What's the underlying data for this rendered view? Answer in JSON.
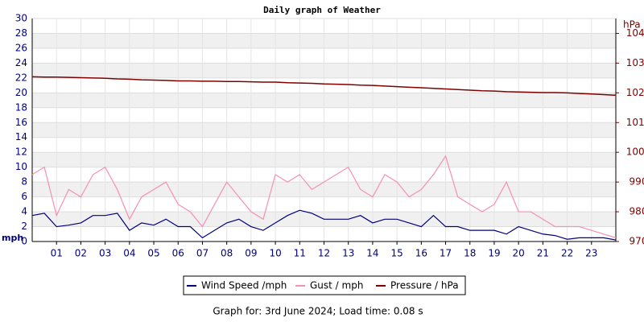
{
  "chart_data": {
    "type": "line",
    "title": "Daily graph of Weather",
    "y_label": "mph",
    "y2_label": "hPa",
    "footer": "Graph for: 3rd June 2024; Load time: 0.08 s",
    "grid": true,
    "xlim": [
      0,
      24
    ],
    "xticks": [
      {
        "value": 1,
        "label": "01"
      },
      {
        "value": 2,
        "label": "02"
      },
      {
        "value": 3,
        "label": "03"
      },
      {
        "value": 4,
        "label": "04"
      },
      {
        "value": 5,
        "label": "05"
      },
      {
        "value": 6,
        "label": "06"
      },
      {
        "value": 7,
        "label": "07"
      },
      {
        "value": 8,
        "label": "08"
      },
      {
        "value": 9,
        "label": "09"
      },
      {
        "value": 10,
        "label": "10"
      },
      {
        "value": 11,
        "label": "11"
      },
      {
        "value": 12,
        "label": "12"
      },
      {
        "value": 13,
        "label": "13"
      },
      {
        "value": 14,
        "label": "14"
      },
      {
        "value": 15,
        "label": "15"
      },
      {
        "value": 16,
        "label": "16"
      },
      {
        "value": 17,
        "label": "17"
      },
      {
        "value": 18,
        "label": "18"
      },
      {
        "value": 19,
        "label": "19"
      },
      {
        "value": 20,
        "label": "20"
      },
      {
        "value": 21,
        "label": "21"
      },
      {
        "value": 22,
        "label": "22"
      },
      {
        "value": 23,
        "label": "23"
      }
    ],
    "ylim": [
      0,
      30
    ],
    "yticks": [
      0,
      2,
      4,
      6,
      8,
      10,
      12,
      14,
      16,
      18,
      20,
      22,
      24,
      26,
      28,
      30
    ],
    "y2lim": [
      970,
      1045
    ],
    "y2ticks": [
      970,
      980,
      990,
      1000,
      1010,
      1020,
      1030,
      1040
    ],
    "x": [
      0,
      0.5,
      1,
      1.5,
      2,
      2.5,
      3,
      3.5,
      4,
      4.5,
      5,
      5.5,
      6,
      6.5,
      7,
      7.5,
      8,
      8.5,
      9,
      9.5,
      10,
      10.5,
      11,
      11.5,
      12,
      12.5,
      13,
      13.5,
      14,
      14.5,
      15,
      15.5,
      16,
      16.5,
      17,
      17.5,
      18,
      18.5,
      19,
      19.5,
      20,
      20.5,
      21,
      21.5,
      22,
      22.5,
      23,
      23.5,
      24
    ],
    "series": [
      {
        "name": "Wind Speed /mph",
        "color": "#000080",
        "axis": "y",
        "values": [
          3.5,
          3.8,
          2,
          2.2,
          2.5,
          3.5,
          3.5,
          3.8,
          1.5,
          2.5,
          2.2,
          3,
          2,
          2,
          0.5,
          1.5,
          2.5,
          3,
          2,
          1.5,
          2.5,
          3.5,
          4.2,
          3.8,
          3,
          3,
          3,
          3.5,
          2.5,
          3,
          3,
          2.5,
          2,
          3.5,
          2,
          2,
          1.5,
          1.5,
          1.5,
          1,
          2,
          1.5,
          1,
          0.8,
          0.3,
          0.5,
          0.5,
          0.5,
          0.2
        ]
      },
      {
        "name": "Gust / mph",
        "color": "#f78fb3",
        "axis": "y",
        "values": [
          9,
          10,
          3.5,
          7,
          6,
          9,
          10,
          7,
          3,
          6,
          7,
          8,
          5,
          4,
          2,
          5,
          8,
          6,
          4,
          3,
          9,
          8,
          9,
          7,
          8,
          9,
          10,
          7,
          6,
          9,
          8,
          6,
          7,
          9,
          11.5,
          6,
          5,
          4,
          5,
          8,
          4,
          4,
          3,
          2,
          2,
          2,
          1.5,
          1,
          0.5
        ]
      },
      {
        "name": "Pressure / hPa",
        "color": "#800000",
        "axis": "y2",
        "values": [
          1025.4,
          1025.3,
          1025.3,
          1025.2,
          1025.1,
          1025.0,
          1024.9,
          1024.7,
          1024.6,
          1024.4,
          1024.3,
          1024.2,
          1024.0,
          1024.0,
          1023.9,
          1023.9,
          1023.8,
          1023.8,
          1023.7,
          1023.6,
          1023.6,
          1023.4,
          1023.3,
          1023.2,
          1023.0,
          1022.9,
          1022.8,
          1022.6,
          1022.5,
          1022.3,
          1022.1,
          1021.9,
          1021.7,
          1021.5,
          1021.3,
          1021.1,
          1020.9,
          1020.7,
          1020.6,
          1020.4,
          1020.3,
          1020.2,
          1020.1,
          1020.1,
          1020.0,
          1019.8,
          1019.6,
          1019.4,
          1019.2
        ]
      }
    ]
  }
}
